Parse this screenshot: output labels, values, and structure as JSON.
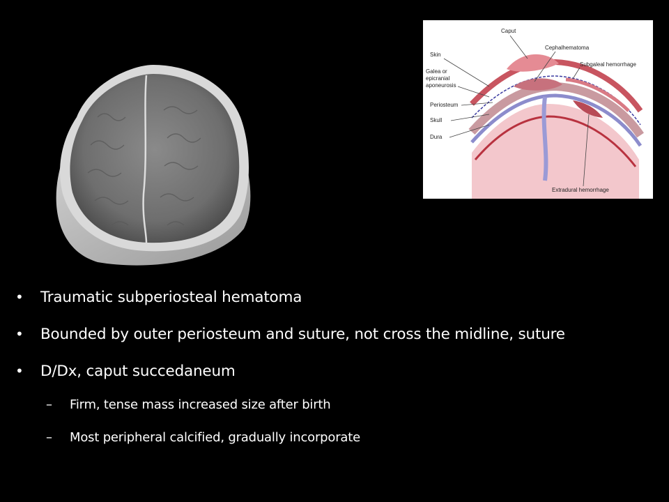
{
  "images": {
    "mri": {
      "icon": "axial-mri-brain-image"
    },
    "diagram": {
      "icon": "scalp-layers-anatomy-diagram",
      "labels": {
        "caput": "Caput",
        "cephalhematoma": "Cephalhematoma",
        "skin": "Skin",
        "subgaleal": "Subgaleal hemorrhage",
        "galea_1": "Galea or",
        "galea_2": "epicranial",
        "galea_3": "aponeurosis",
        "periosteum": "Periosteum",
        "skull": "Skull",
        "dura": "Dura",
        "extradural": "Extradural hemorrhage"
      }
    }
  },
  "bullets": [
    {
      "dot": "•",
      "text": "Traumatic subperiosteal hematoma"
    },
    {
      "dot": "•",
      "text": "Bounded by outer periosteum and suture, not cross the midline, suture"
    },
    {
      "dot": "•",
      "text": "D/Dx, caput succedaneum"
    }
  ],
  "sub_bullets": [
    {
      "dash": "–",
      "text": "Firm, tense mass increased size after birth"
    },
    {
      "dash": "–",
      "text": "Most peripheral calcified, gradually incorporate"
    }
  ],
  "colors": {
    "background": "#000000",
    "text": "#ffffff"
  }
}
